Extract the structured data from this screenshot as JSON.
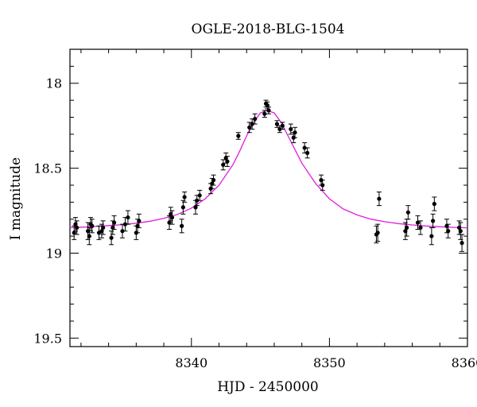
{
  "chart_data": {
    "type": "scatter",
    "title": "OGLE-2018-BLG-1504",
    "xlabel": "HJD - 2450000",
    "ylabel": "I magnitude",
    "xlim": [
      8331.2,
      8360
    ],
    "ylim": [
      17.8,
      19.55
    ],
    "y_inverted": true,
    "x_ticks": [
      8340,
      8350,
      8360
    ],
    "x_tick_labels": [
      "8340",
      "8350",
      "8360"
    ],
    "y_ticks": [
      18.0,
      18.5,
      19.0,
      19.5
    ],
    "y_tick_labels": [
      "18",
      "18.5",
      "19",
      "19.5"
    ],
    "grid": false,
    "legend": "none",
    "colors": {
      "model": "#e01ee0",
      "points": "#000000"
    },
    "series": [
      {
        "type": "model",
        "x": [
          8331.2,
          8332,
          8333,
          8334,
          8335,
          8336,
          8337,
          8338,
          8339,
          8340,
          8341,
          8342,
          8343,
          8343.5,
          8344,
          8344.5,
          8345,
          8345.5,
          8346,
          8346.5,
          8347,
          8347.5,
          8348,
          8348.5,
          8349,
          8350,
          8351,
          8352,
          8353,
          8354,
          8355,
          8356,
          8357,
          8358,
          8359,
          8360
        ],
        "y": [
          18.85,
          18.847,
          18.843,
          18.838,
          18.832,
          18.824,
          18.812,
          18.795,
          18.772,
          18.735,
          18.68,
          18.6,
          18.48,
          18.4,
          18.31,
          18.23,
          18.175,
          18.16,
          18.175,
          18.23,
          18.31,
          18.39,
          18.47,
          18.53,
          18.59,
          18.68,
          18.74,
          18.775,
          18.8,
          18.815,
          18.826,
          18.834,
          18.84,
          18.845,
          18.848,
          18.851
        ]
      },
      {
        "type": "points",
        "x": [
          8331.5,
          8331.6,
          8331.7,
          8332.5,
          8332.6,
          8332.7,
          8332.8,
          8333.3,
          8333.5,
          8333.6,
          8334.2,
          8334.3,
          8334.4,
          8335.0,
          8335.2,
          8335.4,
          8336.0,
          8336.1,
          8336.2,
          8338.4,
          8338.5,
          8338.6,
          8339.3,
          8339.4,
          8339.5,
          8340.3,
          8340.4,
          8340.6,
          8341.4,
          8341.5,
          8341.6,
          8342.3,
          8342.5,
          8342.6,
          8343.4,
          8344.2,
          8344.4,
          8344.6,
          8345.3,
          8345.4,
          8345.5,
          8345.6,
          8346.2,
          8346.4,
          8346.6,
          8347.2,
          8347.4,
          8347.5,
          8348.2,
          8348.4,
          8349.4,
          8349.5,
          8353.4,
          8353.5,
          8353.6,
          8355.5,
          8355.6,
          8355.7,
          8356.4,
          8356.6,
          8357.4,
          8357.5,
          8357.6,
          8358.5,
          8358.6,
          8359.4,
          8359.5,
          8359.6
        ],
        "y": [
          18.88,
          18.83,
          18.85,
          18.87,
          18.9,
          18.83,
          18.84,
          18.88,
          18.87,
          18.85,
          18.91,
          18.85,
          18.82,
          18.87,
          18.83,
          18.79,
          18.88,
          18.84,
          18.81,
          18.82,
          18.77,
          18.79,
          18.84,
          18.73,
          18.67,
          18.73,
          18.69,
          18.66,
          18.62,
          18.59,
          18.57,
          18.48,
          18.44,
          18.46,
          18.31,
          18.26,
          18.24,
          18.21,
          18.18,
          18.12,
          18.13,
          18.16,
          18.24,
          18.27,
          18.25,
          18.27,
          18.32,
          18.29,
          18.38,
          18.41,
          18.57,
          18.6,
          18.89,
          18.88,
          18.68,
          18.87,
          18.85,
          18.76,
          18.82,
          18.85,
          18.9,
          18.81,
          18.71,
          18.84,
          18.87,
          18.85,
          18.87,
          18.94
        ],
        "err": [
          0.04,
          0.04,
          0.04,
          0.05,
          0.05,
          0.04,
          0.04,
          0.04,
          0.04,
          0.04,
          0.04,
          0.04,
          0.04,
          0.04,
          0.04,
          0.04,
          0.04,
          0.04,
          0.04,
          0.04,
          0.04,
          0.04,
          0.04,
          0.04,
          0.03,
          0.04,
          0.03,
          0.03,
          0.03,
          0.03,
          0.03,
          0.03,
          0.03,
          0.03,
          0.02,
          0.03,
          0.03,
          0.03,
          0.02,
          0.02,
          0.02,
          0.02,
          0.02,
          0.02,
          0.02,
          0.03,
          0.03,
          0.03,
          0.03,
          0.03,
          0.03,
          0.03,
          0.05,
          0.05,
          0.04,
          0.05,
          0.05,
          0.04,
          0.04,
          0.04,
          0.05,
          0.04,
          0.04,
          0.04,
          0.04,
          0.04,
          0.05,
          0.05
        ]
      }
    ]
  }
}
